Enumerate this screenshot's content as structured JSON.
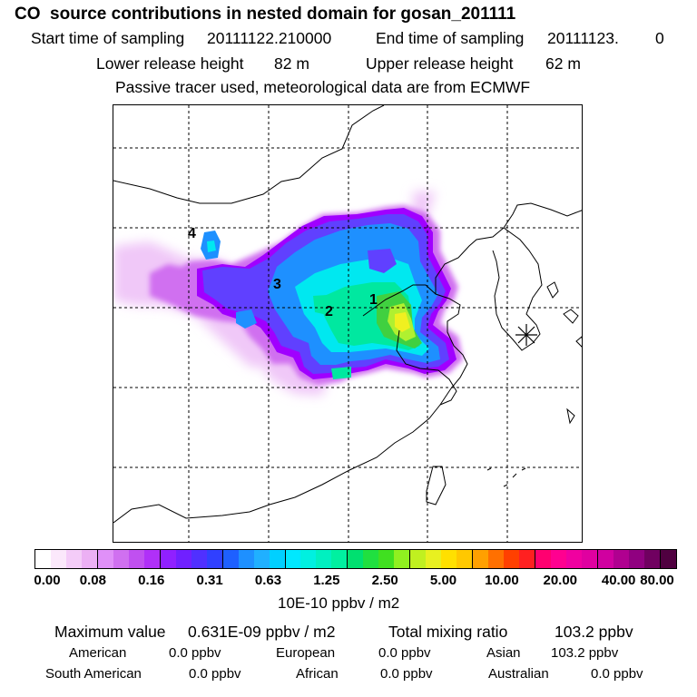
{
  "header": {
    "title": "CO  source contributions in nested domain for gosan_201111",
    "start_label": "Start time of sampling",
    "start_value": "20111122.210000",
    "end_label": "End time of sampling",
    "end_value": "20111123.",
    "end_extra": "0",
    "lower_label": "Lower release height",
    "lower_value": "82 m",
    "upper_label": "Upper release height",
    "upper_value": "62 m",
    "note": "Passive tracer used, meteorological data are from ECMWF"
  },
  "map": {
    "source_labels": [
      "1",
      "2",
      "3",
      "4"
    ],
    "receptor_icon": "asterisk-receptor-icon",
    "plume_colors": [
      "#f0c8f8",
      "#d070f0",
      "#a000ff",
      "#6040ff",
      "#1e90ff",
      "#00e8f0",
      "#00e8a0",
      "#40d040",
      "#b0f030",
      "#f0f020"
    ]
  },
  "colorbar": {
    "colors": [
      "#ffffff",
      "#fbe8fb",
      "#f4ccf8",
      "#ecb0f4",
      "#e090f8",
      "#d070f0",
      "#c050f0",
      "#b030f8",
      "#9020ff",
      "#7020ff",
      "#5030ff",
      "#3040ff",
      "#1e60ff",
      "#1e90ff",
      "#20b0ff",
      "#00d0ff",
      "#00e8ff",
      "#00f0e0",
      "#00f0c0",
      "#00f0a0",
      "#00e070",
      "#20e040",
      "#40e020",
      "#90f020",
      "#c0f020",
      "#e8f020",
      "#ffe000",
      "#ffc800",
      "#ffa000",
      "#ff7000",
      "#ff4000",
      "#ff2020",
      "#ff0070",
      "#ff0090",
      "#f000a0",
      "#e000a0",
      "#d000a0",
      "#b00090",
      "#900080",
      "#700060",
      "#500040"
    ],
    "ticks": [
      "0.00",
      "0.08",
      "0.16",
      "0.31",
      "0.63",
      "1.25",
      "2.50",
      "5.00",
      "10.00",
      "20.00",
      "40.00",
      "80.00"
    ],
    "unit": "10E-10 ppbv / m2"
  },
  "summary": {
    "max_label": "Maximum value",
    "max_value": "0.631E-09 ppbv / m2",
    "total_label": "Total mixing ratio",
    "total_value": "103.2 ppbv",
    "regions": [
      {
        "name": "American",
        "value": "0.0 ppbv"
      },
      {
        "name": "European",
        "value": "0.0 ppbv"
      },
      {
        "name": "Asian",
        "value": "103.2 ppbv"
      },
      {
        "name": "South American",
        "value": "0.0 ppbv"
      },
      {
        "name": "African",
        "value": "0.0 ppbv"
      },
      {
        "name": "Australian",
        "value": "0.0 ppbv"
      }
    ]
  }
}
